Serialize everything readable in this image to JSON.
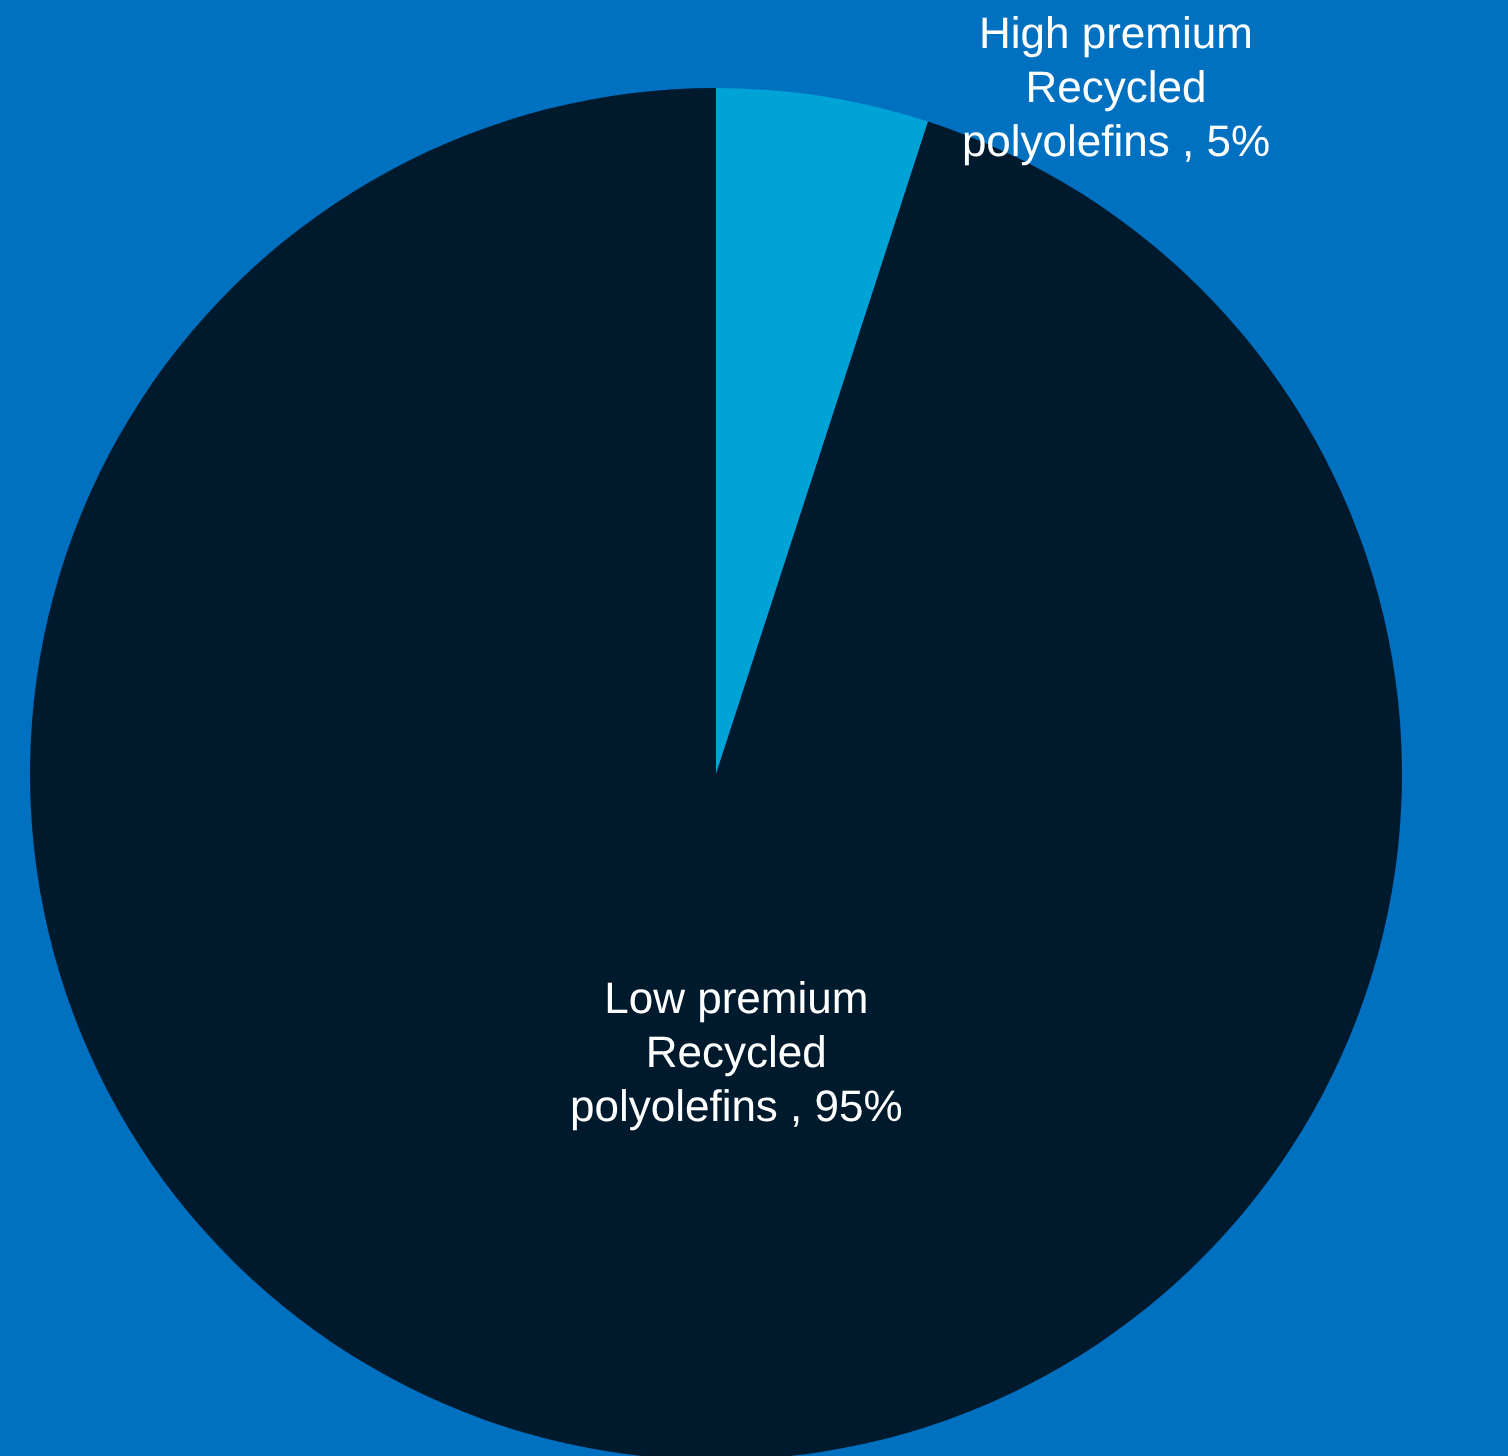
{
  "chart_data": {
    "type": "pie",
    "categories": [
      "High premium Recycled polyolefins",
      "Low premium Recycled polyolefins"
    ],
    "values": [
      5,
      95
    ],
    "value_labels": [
      "5%",
      "95%"
    ],
    "colors": [
      "#00a3d6",
      "#001a2d"
    ]
  }
}
